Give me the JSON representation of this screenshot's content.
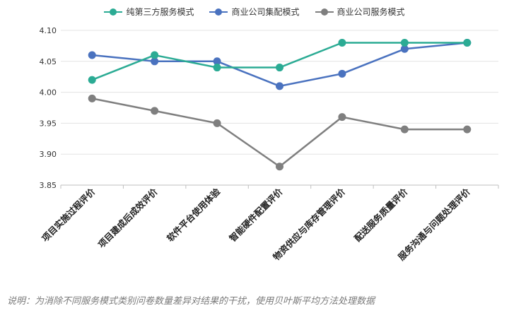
{
  "chart_data": {
    "type": "line",
    "categories": [
      "项目实施过程评价",
      "项目建成后成效评价",
      "软件平台使用体验",
      "智能硬件配置评价",
      "物资供应与库存管理评价",
      "配送服务质量评价",
      "服务沟通与问题处理评价"
    ],
    "series": [
      {
        "name": "纯第三方服务模式",
        "color": "#2bab94",
        "values": [
          4.02,
          4.06,
          4.04,
          4.04,
          4.08,
          4.08,
          4.08
        ]
      },
      {
        "name": "商业公司集配模式",
        "color": "#4a72bf",
        "values": [
          4.06,
          4.05,
          4.05,
          4.01,
          4.03,
          4.07,
          4.08
        ]
      },
      {
        "name": "商业公司服务模式",
        "color": "#7f7f7f",
        "values": [
          3.99,
          3.97,
          3.95,
          3.88,
          3.96,
          3.94,
          3.94
        ]
      }
    ],
    "ylim": [
      3.85,
      4.1
    ],
    "yticks": [
      "3.85",
      "3.90",
      "3.95",
      "4.00",
      "4.05",
      "4.10"
    ],
    "grid": true,
    "legend_position": "top-center"
  },
  "note": "说明：为消除不同服务模式类别问卷数量差异对结果的干扰，使用贝叶斯平均方法处理数据"
}
